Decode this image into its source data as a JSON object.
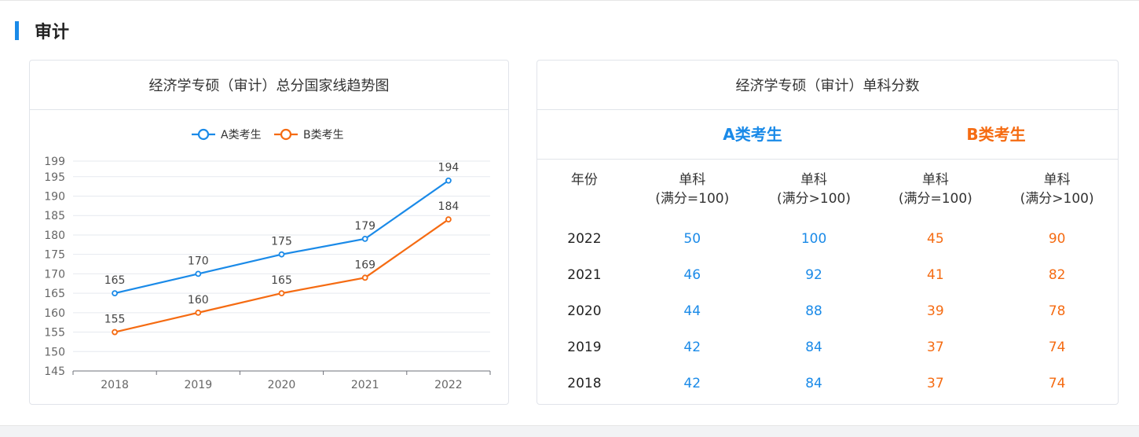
{
  "section": {
    "title": "审计"
  },
  "trend_card": {
    "title": "经济学专硕（审计）总分国家线趋势图"
  },
  "score_card": {
    "title": "经济学专硕（审计）单科分数",
    "group_a": "A类考生",
    "group_b": "B类考生",
    "headers": {
      "year": "年份",
      "c1_line1": "单科",
      "c1_line2": "(满分=100)",
      "c2_line1": "单科",
      "c2_line2": "(满分>100)",
      "c3_line1": "单科",
      "c3_line2": "(满分=100)",
      "c4_line1": "单科",
      "c4_line2": "(满分>100)"
    },
    "rows": [
      {
        "year": "2022",
        "a100": "50",
        "aover": "100",
        "b100": "45",
        "bover": "90"
      },
      {
        "year": "2021",
        "a100": "46",
        "aover": "92",
        "b100": "41",
        "bover": "82"
      },
      {
        "year": "2020",
        "a100": "44",
        "aover": "88",
        "b100": "39",
        "bover": "78"
      },
      {
        "year": "2019",
        "a100": "42",
        "aover": "84",
        "b100": "37",
        "bover": "74"
      },
      {
        "year": "2018",
        "a100": "42",
        "aover": "84",
        "b100": "37",
        "bover": "74"
      }
    ]
  },
  "colors": {
    "accent": "#1a8ae8",
    "series_a": "#1a8ae8",
    "series_b": "#f56b12"
  },
  "chart_data": {
    "type": "line",
    "title": "经济学专硕（审计）总分国家线趋势图",
    "categories": [
      "2018",
      "2019",
      "2020",
      "2021",
      "2022"
    ],
    "series": [
      {
        "name": "A类考生",
        "color": "#1a8ae8",
        "values": [
          165,
          170,
          175,
          179,
          194
        ]
      },
      {
        "name": "B类考生",
        "color": "#f56b12",
        "values": [
          155,
          160,
          165,
          169,
          184
        ]
      }
    ],
    "yticks": [
      145,
      150,
      155,
      160,
      165,
      170,
      175,
      180,
      185,
      190,
      195,
      199
    ],
    "ylim": [
      145,
      199
    ],
    "grid": true,
    "legend": "top-center",
    "xlabel": "",
    "ylabel": ""
  }
}
